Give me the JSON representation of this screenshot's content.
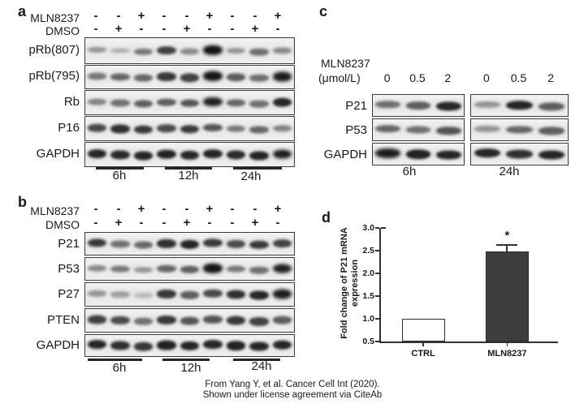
{
  "caption": {
    "line1": "From Yang Y, et al. Cancer Cell Int (2020).",
    "line2": "Shown under license agreement via CiteAb"
  },
  "panel_a": {
    "label": "a",
    "treatments": [
      {
        "name": "MLN8237",
        "signs": [
          "-",
          "-",
          "+",
          "-",
          "-",
          "+",
          "-",
          "-",
          "+"
        ]
      },
      {
        "name": "DMSO",
        "signs": [
          "-",
          "+",
          "-",
          "-",
          "+",
          "-",
          "-",
          "+",
          "-"
        ]
      }
    ],
    "blot_rows": [
      {
        "name": "pRb(807)",
        "bands": [
          0.3,
          0.15,
          0.45,
          0.75,
          0.35,
          1.0,
          0.3,
          0.5,
          0.35
        ]
      },
      {
        "name": "pRb(795)",
        "bands": [
          0.45,
          0.55,
          0.55,
          0.8,
          0.75,
          1.0,
          0.6,
          0.5,
          0.95
        ]
      },
      {
        "name": "Rb",
        "bands": [
          0.4,
          0.5,
          0.6,
          0.6,
          0.65,
          0.95,
          0.55,
          0.5,
          0.9
        ]
      },
      {
        "name": "P16",
        "bands": [
          0.7,
          0.85,
          0.8,
          0.7,
          0.8,
          0.65,
          0.45,
          0.55,
          0.4
        ]
      },
      {
        "name": "GAPDH",
        "bands": [
          0.9,
          0.88,
          0.9,
          0.92,
          0.9,
          0.9,
          0.88,
          0.9,
          0.95
        ]
      }
    ],
    "time_labels": [
      "6h",
      "12h",
      "24h"
    ]
  },
  "panel_b": {
    "label": "b",
    "treatments": [
      {
        "name": "MLN8237",
        "signs": [
          "-",
          "-",
          "+",
          "-",
          "-",
          "+",
          "-",
          "-",
          "+"
        ]
      },
      {
        "name": "DMSO",
        "signs": [
          "-",
          "+",
          "-",
          "-",
          "+",
          "-",
          "-",
          "+",
          "-"
        ]
      }
    ],
    "blot_rows": [
      {
        "name": "P21",
        "bands": [
          0.8,
          0.5,
          0.55,
          0.85,
          0.9,
          0.8,
          0.7,
          0.8,
          0.75
        ]
      },
      {
        "name": "P53",
        "bands": [
          0.35,
          0.45,
          0.3,
          0.55,
          0.6,
          1.0,
          0.45,
          0.5,
          0.95
        ]
      },
      {
        "name": "P27",
        "bands": [
          0.3,
          0.25,
          0.1,
          0.8,
          0.6,
          0.7,
          0.85,
          0.9,
          0.95
        ]
      },
      {
        "name": "PTEN",
        "bands": [
          0.75,
          0.7,
          0.5,
          0.8,
          0.65,
          0.65,
          0.8,
          0.75,
          0.6
        ]
      },
      {
        "name": "GAPDH",
        "bands": [
          0.9,
          0.85,
          0.8,
          0.92,
          0.9,
          0.9,
          0.92,
          0.9,
          0.9
        ]
      }
    ],
    "time_labels": [
      "6h",
      "12h",
      "24h"
    ]
  },
  "panel_c": {
    "label": "c",
    "treatment_name": "MLN8237",
    "unit": "(μmol/L)",
    "doses_group1": [
      "0",
      "0.5",
      "2"
    ],
    "doses_group2": [
      "0",
      "0.5",
      "2"
    ],
    "blot_rows": [
      {
        "name": "P21",
        "bands_g1": [
          0.5,
          0.6,
          0.9
        ],
        "bands_g2": [
          0.3,
          0.9,
          0.6
        ]
      },
      {
        "name": "P53",
        "bands_g1": [
          0.55,
          0.5,
          0.65
        ],
        "bands_g2": [
          0.3,
          0.55,
          0.6
        ]
      },
      {
        "name": "GAPDH",
        "bands_g1": [
          0.95,
          0.92,
          0.9
        ],
        "bands_g2": [
          0.9,
          0.85,
          0.9
        ]
      }
    ],
    "time_labels": [
      "6h",
      "24h"
    ]
  },
  "panel_d": {
    "label": "d"
  },
  "chart_data": {
    "type": "bar",
    "title": "",
    "categories": [
      "CTRL",
      "MLN8237"
    ],
    "values": [
      1.0,
      2.48
    ],
    "errors": [
      0,
      0.17
    ],
    "significance": [
      "",
      "*"
    ],
    "xlabel": "",
    "ylabel": "Fold change of P21 mRNA expression",
    "ylabel_lines": [
      "Fold change of P21 mRNA",
      "expression"
    ],
    "ylim": [
      0.5,
      3.0
    ],
    "yticks": [
      0.5,
      1.0,
      1.5,
      2.0,
      2.5,
      3.0
    ],
    "grid": false,
    "legend": "none",
    "bar_colors": [
      "#ffffff",
      "#3d3d3d"
    ],
    "bar_border": "#2e2e2e"
  }
}
